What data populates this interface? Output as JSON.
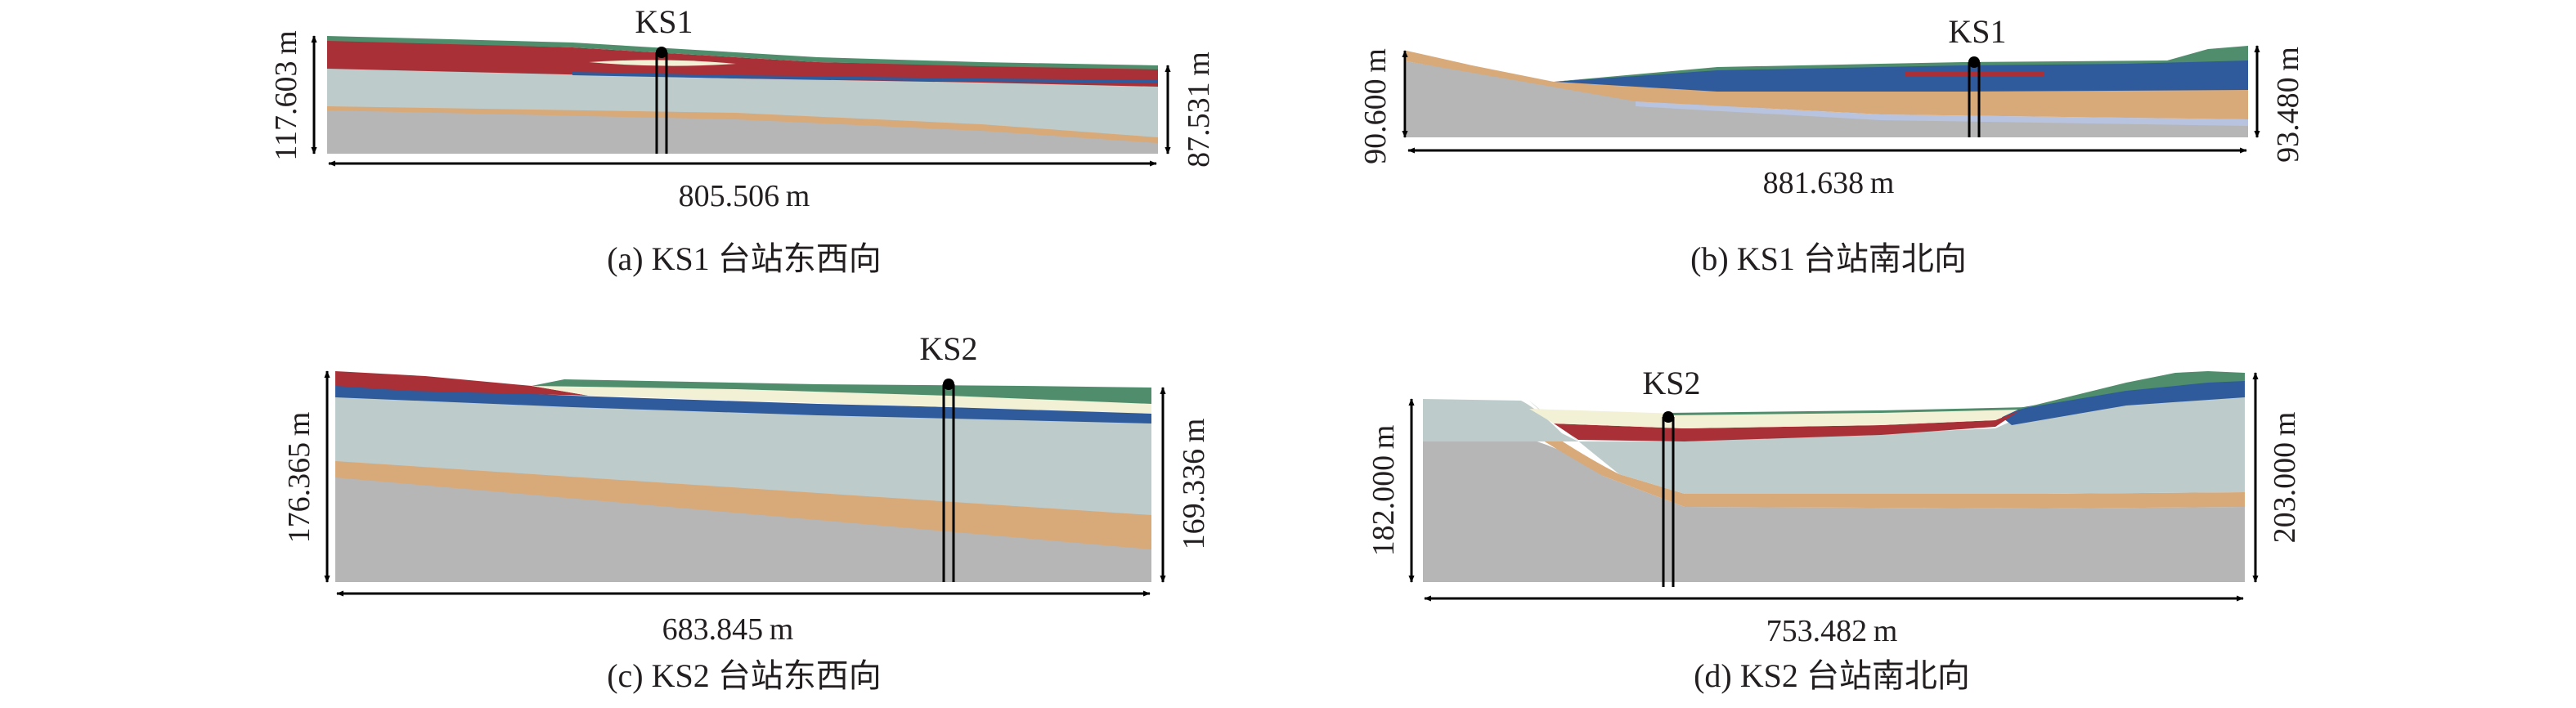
{
  "colors": {
    "basement_gray": "#b6b6b6",
    "light_blue_gray": "#bdcbcb",
    "orange_tan": "#d8a979",
    "dark_red": "#a83036",
    "navy_blue": "#2f5a9b",
    "green": "#4f8d6c",
    "pale_yellow": "#f2f0d5",
    "pale_blue": "#b8c3df",
    "well_line": "#000000",
    "text": "#231f20"
  },
  "panels": [
    {
      "id": "a",
      "caption": "(a) KS1 台站东西向",
      "station": "KS1",
      "width_label": "805.506 m",
      "left_height_label": "117.603 m",
      "right_height_label": "87.531 m"
    },
    {
      "id": "b",
      "caption": "(b) KS1 台站南北向",
      "station": "KS1",
      "width_label": "881.638 m",
      "left_height_label": "90.600 m",
      "right_height_label": "93.480 m"
    },
    {
      "id": "c",
      "caption": "(c) KS2 台站东西向",
      "station": "KS2",
      "width_label": "683.845 m",
      "left_height_label": "176.365 m",
      "right_height_label": "169.336 m"
    },
    {
      "id": "d",
      "caption": "(d) KS2 台站南北向",
      "station": "KS2",
      "width_label": "753.482 m",
      "left_height_label": "182.000 m",
      "right_height_label": "203.000 m"
    }
  ]
}
